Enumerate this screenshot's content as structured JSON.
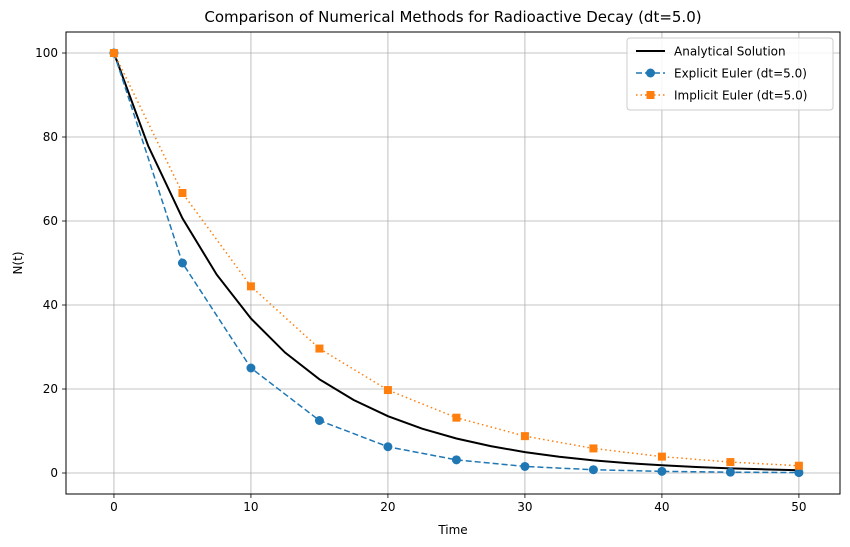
{
  "chart_data": {
    "type": "line",
    "title": "Comparison of Numerical Methods for Radioactive Decay (dt=5.0)",
    "xlabel": "Time",
    "ylabel": "N(t)",
    "xlim": [
      -3.5,
      53
    ],
    "ylim": [
      -5,
      105
    ],
    "xticks": [
      0,
      10,
      20,
      30,
      40,
      50
    ],
    "yticks": [
      0,
      20,
      40,
      60,
      80,
      100
    ],
    "grid": true,
    "legend_position": "top-right",
    "series": [
      {
        "name": "Analytical Solution",
        "style": "solid",
        "marker": "none",
        "color": "#000000",
        "x": [
          0,
          2.5,
          5,
          7.5,
          10,
          12.5,
          15,
          17.5,
          20,
          22.5,
          25,
          27.5,
          30,
          32.5,
          35,
          37.5,
          40,
          42.5,
          45,
          47.5,
          50
        ],
        "values": [
          100,
          77.88,
          60.65,
          47.24,
          36.79,
          28.65,
          22.31,
          17.38,
          13.53,
          10.54,
          8.21,
          6.39,
          4.98,
          3.88,
          3.02,
          2.35,
          1.83,
          1.43,
          1.11,
          0.87,
          0.67
        ]
      },
      {
        "name": "Explicit Euler (dt=5.0)",
        "style": "dashed",
        "marker": "circle",
        "color": "#1f77b4",
        "x": [
          0,
          5,
          10,
          15,
          20,
          25,
          30,
          35,
          40,
          45,
          50
        ],
        "values": [
          100,
          50,
          25,
          12.5,
          6.25,
          3.13,
          1.56,
          0.78,
          0.39,
          0.2,
          0.1
        ]
      },
      {
        "name": "Implicit Euler (dt=5.0)",
        "style": "dotted",
        "marker": "square",
        "color": "#ff7f0e",
        "x": [
          0,
          5,
          10,
          15,
          20,
          25,
          30,
          35,
          40,
          45,
          50
        ],
        "values": [
          100,
          66.67,
          44.44,
          29.63,
          19.75,
          13.17,
          8.78,
          5.85,
          3.9,
          2.6,
          1.73
        ]
      }
    ]
  }
}
